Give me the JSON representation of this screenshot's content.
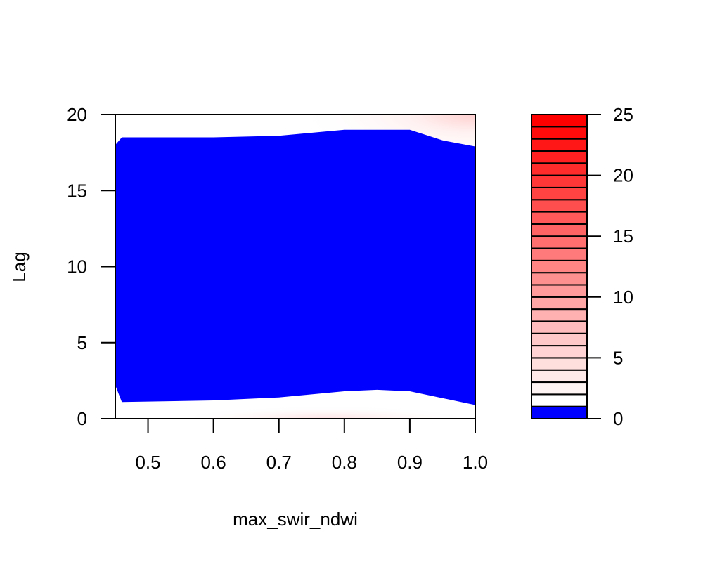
{
  "chart_data": {
    "type": "heatmap",
    "subtype": "filled-contour",
    "title": "",
    "xlabel": "max_swir_ndwi",
    "ylabel": "Lag",
    "xlim": [
      0.45,
      1.0
    ],
    "ylim": [
      0,
      20
    ],
    "x_ticks": [
      "0.5",
      "0.6",
      "0.7",
      "0.8",
      "0.9",
      "1.0"
    ],
    "x_tick_values": [
      0.5,
      0.6,
      0.7,
      0.8,
      0.9,
      1.0
    ],
    "y_ticks": [
      "0",
      "5",
      "10",
      "15",
      "20"
    ],
    "y_tick_values": [
      0,
      5,
      10,
      15,
      20
    ],
    "grid": false,
    "low_region_color": "#0000FF",
    "high_color": "#FF0000",
    "low_region_boundary": {
      "upper": [
        [
          0.45,
          18.0
        ],
        [
          0.46,
          18.5
        ],
        [
          0.6,
          18.5
        ],
        [
          0.7,
          18.6
        ],
        [
          0.8,
          19.0
        ],
        [
          0.9,
          19.0
        ],
        [
          0.95,
          18.3
        ],
        [
          1.0,
          17.9
        ]
      ],
      "lower": [
        [
          0.45,
          2.2
        ],
        [
          0.46,
          1.1
        ],
        [
          0.6,
          1.2
        ],
        [
          0.7,
          1.4
        ],
        [
          0.8,
          1.8
        ],
        [
          0.85,
          1.9
        ],
        [
          0.9,
          1.8
        ],
        [
          1.0,
          0.9
        ]
      ]
    },
    "colorbar": {
      "min": 0,
      "max": 25,
      "ticks": [
        "0",
        "5",
        "10",
        "15",
        "20",
        "25"
      ],
      "tick_values": [
        0,
        5,
        10,
        15,
        20,
        25
      ],
      "levels": [
        0,
        1,
        2,
        3,
        4,
        5,
        6,
        7,
        8,
        9,
        10,
        11,
        12,
        13,
        14,
        15,
        16,
        17,
        18,
        19,
        20,
        21,
        22,
        23,
        24,
        25
      ],
      "lowest_band_color": "#0000FF"
    }
  }
}
